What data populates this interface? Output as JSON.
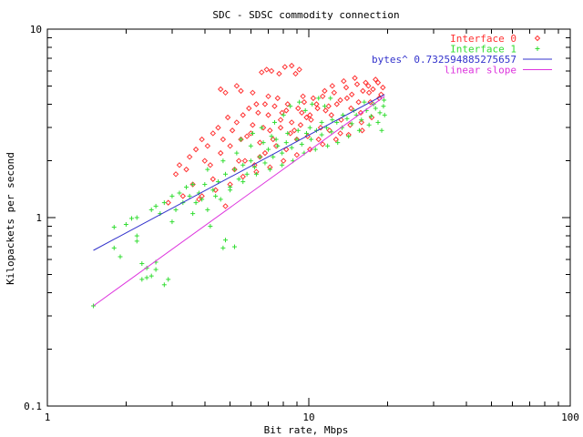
{
  "chart_data": {
    "type": "scatter",
    "title": "SDC - SDSC commodity connection",
    "xlabel": "Bit rate, Mbps",
    "ylabel": "Kilopackets per second",
    "xscale": "log",
    "yscale": "log",
    "xlim": [
      1,
      100
    ],
    "ylim": [
      0.1,
      10
    ],
    "xticks": [
      1,
      10,
      100
    ],
    "xtick_labels": [
      "1",
      "10",
      "100"
    ],
    "yticks": [
      0.1,
      1,
      10
    ],
    "ytick_labels": [
      "0.1",
      "1",
      "10"
    ],
    "grid": false,
    "legend_position": "top-right",
    "series": [
      {
        "name": "Interface 0",
        "kind": "scatter",
        "marker": "diamond",
        "color": "#ff3333",
        "points": [
          [
            4.6,
            4.8
          ],
          [
            4.8,
            4.6
          ],
          [
            5.3,
            5.0
          ],
          [
            5.5,
            4.7
          ],
          [
            6.1,
            4.6
          ],
          [
            6.6,
            5.9
          ],
          [
            6.9,
            6.1
          ],
          [
            7.2,
            6.0
          ],
          [
            7.7,
            5.8
          ],
          [
            8.1,
            6.3
          ],
          [
            8.6,
            6.4
          ],
          [
            8.9,
            5.8
          ],
          [
            9.2,
            6.1
          ],
          [
            6.3,
            4.0
          ],
          [
            7.0,
            4.4
          ],
          [
            7.6,
            4.3
          ],
          [
            8.3,
            4.0
          ],
          [
            9.5,
            4.4
          ],
          [
            3.1,
            1.7
          ],
          [
            3.2,
            1.9
          ],
          [
            3.4,
            1.8
          ],
          [
            3.5,
            2.1
          ],
          [
            3.7,
            2.3
          ],
          [
            3.9,
            2.6
          ],
          [
            4.1,
            2.4
          ],
          [
            4.3,
            2.8
          ],
          [
            4.5,
            3.0
          ],
          [
            4.7,
            2.6
          ],
          [
            4.9,
            3.4
          ],
          [
            5.1,
            2.9
          ],
          [
            5.3,
            3.2
          ],
          [
            5.6,
            3.5
          ],
          [
            5.8,
            2.7
          ],
          [
            6.1,
            3.1
          ],
          [
            6.4,
            3.6
          ],
          [
            6.7,
            3.0
          ],
          [
            7.0,
            3.5
          ],
          [
            7.4,
            3.9
          ],
          [
            7.8,
            3.3
          ],
          [
            8.2,
            3.7
          ],
          [
            8.6,
            3.2
          ],
          [
            9.1,
            3.8
          ],
          [
            9.6,
            4.1
          ],
          [
            10.1,
            3.5
          ],
          [
            10.7,
            4.0
          ],
          [
            11.3,
            4.4
          ],
          [
            11.9,
            3.9
          ],
          [
            12.5,
            4.6
          ],
          [
            13.2,
            4.2
          ],
          [
            13.9,
            4.9
          ],
          [
            14.6,
            4.5
          ],
          [
            15.3,
            5.1
          ],
          [
            16.1,
            4.7
          ],
          [
            16.9,
            5.0
          ],
          [
            17.6,
            4.8
          ],
          [
            18.4,
            5.2
          ],
          [
            19.2,
            4.9
          ],
          [
            4.2,
            1.9
          ],
          [
            4.6,
            2.2
          ],
          [
            5.0,
            2.4
          ],
          [
            5.5,
            2.6
          ],
          [
            6.0,
            2.8
          ],
          [
            6.5,
            2.5
          ],
          [
            7.1,
            2.9
          ],
          [
            7.8,
            3.0
          ],
          [
            8.5,
            2.8
          ],
          [
            9.3,
            3.1
          ],
          [
            10.2,
            3.3
          ],
          [
            11.1,
            3.0
          ],
          [
            12.2,
            3.5
          ],
          [
            13.3,
            3.3
          ],
          [
            14.5,
            3.8
          ],
          [
            15.8,
            3.6
          ],
          [
            17.2,
            4.1
          ],
          [
            18.6,
            4.3
          ],
          [
            3.6,
            1.5
          ],
          [
            3.9,
            1.3
          ],
          [
            4.3,
            1.6
          ],
          [
            4.8,
            1.15
          ],
          [
            5.2,
            1.8
          ],
          [
            5.7,
            2.0
          ],
          [
            6.2,
            1.9
          ],
          [
            6.8,
            2.2
          ],
          [
            7.5,
            2.4
          ],
          [
            8.2,
            2.3
          ],
          [
            9.0,
            2.6
          ],
          [
            9.9,
            2.7
          ],
          [
            10.9,
            2.6
          ],
          [
            12.0,
            2.9
          ],
          [
            13.2,
            2.8
          ],
          [
            14.4,
            3.1
          ],
          [
            15.9,
            3.2
          ],
          [
            17.4,
            3.4
          ],
          [
            2.9,
            1.2
          ],
          [
            3.3,
            1.3
          ],
          [
            3.8,
            1.25
          ],
          [
            4.4,
            1.4
          ],
          [
            5.0,
            1.5
          ],
          [
            5.6,
            1.65
          ],
          [
            6.3,
            1.75
          ],
          [
            7.1,
            1.85
          ],
          [
            8.0,
            2.0
          ],
          [
            9.0,
            2.15
          ],
          [
            10.1,
            2.3
          ],
          [
            11.3,
            2.45
          ],
          [
            12.7,
            2.6
          ],
          [
            14.2,
            2.75
          ],
          [
            16.0,
            2.9
          ],
          [
            6.5,
            2.1
          ],
          [
            7.3,
            2.6
          ],
          [
            8.8,
            2.9
          ],
          [
            9.8,
            3.4
          ],
          [
            11.6,
            3.7
          ],
          [
            12.8,
            4.0
          ],
          [
            14.0,
            4.3
          ],
          [
            15.5,
            4.1
          ],
          [
            17.0,
            4.6
          ],
          [
            18.9,
            4.5
          ],
          [
            10.4,
            4.3
          ],
          [
            11.5,
            4.7
          ],
          [
            12.3,
            5.0
          ],
          [
            13.6,
            5.3
          ],
          [
            15.0,
            5.5
          ],
          [
            16.5,
            5.2
          ],
          [
            18.0,
            5.4
          ],
          [
            5.9,
            3.8
          ],
          [
            6.8,
            4.0
          ],
          [
            7.9,
            3.6
          ],
          [
            9.4,
            3.6
          ],
          [
            10.8,
            3.8
          ],
          [
            5.4,
            2.0
          ],
          [
            4.0,
            2.0
          ]
        ]
      },
      {
        "name": "Interface 1",
        "kind": "scatter",
        "marker": "plus",
        "color": "#33dd33",
        "points": [
          [
            1.5,
            0.34
          ],
          [
            1.8,
            0.69
          ],
          [
            1.8,
            0.89
          ],
          [
            1.9,
            0.62
          ],
          [
            2.0,
            0.92
          ],
          [
            2.1,
            0.99
          ],
          [
            2.2,
            0.75
          ],
          [
            2.2,
            1.0
          ],
          [
            2.3,
            0.57
          ],
          [
            2.3,
            0.47
          ],
          [
            2.4,
            0.54
          ],
          [
            2.5,
            0.49
          ],
          [
            2.5,
            1.1
          ],
          [
            2.6,
            1.15
          ],
          [
            2.6,
            0.58
          ],
          [
            2.7,
            1.05
          ],
          [
            2.8,
            1.2
          ],
          [
            2.8,
            0.44
          ],
          [
            2.9,
            0.47
          ],
          [
            3.0,
            1.3
          ],
          [
            3.1,
            1.1
          ],
          [
            3.2,
            1.35
          ],
          [
            3.3,
            1.2
          ],
          [
            3.4,
            1.45
          ],
          [
            3.5,
            1.3
          ],
          [
            3.6,
            1.5
          ],
          [
            3.7,
            1.2
          ],
          [
            3.8,
            1.35
          ],
          [
            4.0,
            1.5
          ],
          [
            4.1,
            1.1
          ],
          [
            4.3,
            1.4
          ],
          [
            4.5,
            1.55
          ],
          [
            4.6,
            1.25
          ],
          [
            4.8,
            1.7
          ],
          [
            5.0,
            1.45
          ],
          [
            5.2,
            1.8
          ],
          [
            5.4,
            1.6
          ],
          [
            5.6,
            1.9
          ],
          [
            5.8,
            1.7
          ],
          [
            6.0,
            2.0
          ],
          [
            6.2,
            1.85
          ],
          [
            6.5,
            2.1
          ],
          [
            6.8,
            1.95
          ],
          [
            7.0,
            2.3
          ],
          [
            7.3,
            2.1
          ],
          [
            7.6,
            2.4
          ],
          [
            7.9,
            2.2
          ],
          [
            8.2,
            2.5
          ],
          [
            8.6,
            2.35
          ],
          [
            9.0,
            2.6
          ],
          [
            9.4,
            2.45
          ],
          [
            9.8,
            2.8
          ],
          [
            10.2,
            2.6
          ],
          [
            10.7,
            2.9
          ],
          [
            11.2,
            2.75
          ],
          [
            11.7,
            3.0
          ],
          [
            12.2,
            2.85
          ],
          [
            12.8,
            3.2
          ],
          [
            13.4,
            3.0
          ],
          [
            14.0,
            3.35
          ],
          [
            14.6,
            3.15
          ],
          [
            15.2,
            3.5
          ],
          [
            15.9,
            3.3
          ],
          [
            16.6,
            3.7
          ],
          [
            17.3,
            3.45
          ],
          [
            18.0,
            3.8
          ],
          [
            18.7,
            3.6
          ],
          [
            19.3,
            3.9
          ],
          [
            19.5,
            3.5
          ],
          [
            19.4,
            4.2
          ],
          [
            19.0,
            2.9
          ],
          [
            18.4,
            3.2
          ],
          [
            17.7,
            4.0
          ],
          [
            17.0,
            3.1
          ],
          [
            16.3,
            4.1
          ],
          [
            15.6,
            2.9
          ],
          [
            14.9,
            3.7
          ],
          [
            14.2,
            2.7
          ],
          [
            13.5,
            3.5
          ],
          [
            12.9,
            2.5
          ],
          [
            12.3,
            3.3
          ],
          [
            11.8,
            2.4
          ],
          [
            11.2,
            3.2
          ],
          [
            10.6,
            2.3
          ],
          [
            10.1,
            3.0
          ],
          [
            9.6,
            2.2
          ],
          [
            9.1,
            2.9
          ],
          [
            8.7,
            2.0
          ],
          [
            8.3,
            2.8
          ],
          [
            7.9,
            1.9
          ],
          [
            7.5,
            2.6
          ],
          [
            7.1,
            1.8
          ],
          [
            6.7,
            2.5
          ],
          [
            6.3,
            1.7
          ],
          [
            6.0,
            2.4
          ],
          [
            5.6,
            1.55
          ],
          [
            5.3,
            2.2
          ],
          [
            5.0,
            1.4
          ],
          [
            4.7,
            2.0
          ],
          [
            4.4,
            1.3
          ],
          [
            4.1,
            1.8
          ],
          [
            3.9,
            1.25
          ],
          [
            7.4,
            3.2
          ],
          [
            8.0,
            3.5
          ],
          [
            8.5,
            3.9
          ],
          [
            9.2,
            4.1
          ],
          [
            9.7,
            3.7
          ],
          [
            10.3,
            4.0
          ],
          [
            10.9,
            4.3
          ],
          [
            11.5,
            3.9
          ],
          [
            12.1,
            4.3
          ],
          [
            5.5,
            2.6
          ],
          [
            6.1,
            2.8
          ],
          [
            6.6,
            3.0
          ],
          [
            7.2,
            2.7
          ],
          [
            4.8,
            0.76
          ],
          [
            5.2,
            0.7
          ],
          [
            4.7,
            0.69
          ],
          [
            2.4,
            0.48
          ],
          [
            2.6,
            0.53
          ],
          [
            3.6,
            1.05
          ],
          [
            4.2,
            0.9
          ],
          [
            3.0,
            0.95
          ],
          [
            2.2,
            0.8
          ]
        ]
      },
      {
        "name": "bytes^ 0.732594885275657",
        "kind": "line",
        "color": "#3333cc",
        "x": [
          1.5,
          19.5
        ],
        "y": [
          0.67,
          4.5
        ]
      },
      {
        "name": "linear slope",
        "kind": "line",
        "color": "#dd33dd",
        "x": [
          1.5,
          19.5
        ],
        "y": [
          0.34,
          4.4
        ]
      }
    ]
  }
}
